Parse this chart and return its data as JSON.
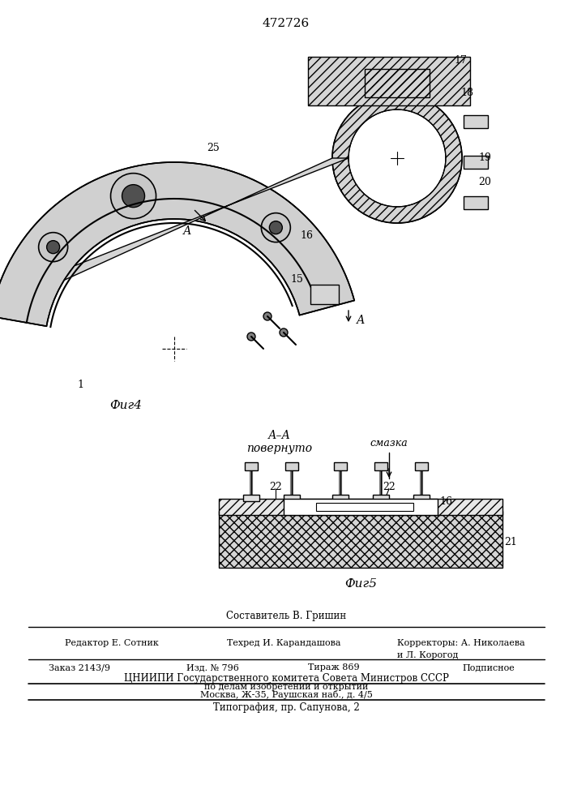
{
  "patent_number": "472726",
  "fig4_label": "Фиг4",
  "fig5_label": "Фиг5",
  "section_label": "А–А\nповернуто",
  "smazka_label": "смазка",
  "composer": "Составитель В. Гришин",
  "editor": "Редактор Е. Сотник",
  "techred": "Техред И. Карандашова",
  "correctors": "Корректоры: А. Николаева",
  "correctors2": "и Л. Корогод",
  "order": "Заказ 2143/9",
  "izd": "Изд. № 796",
  "tirazh": "Тираж 869",
  "podpisnoe": "Подписное",
  "cniipи": "ЦНИИПИ Государственного комитета Совета Министров СССР",
  "po_delam": "по делам изобретений и открытий",
  "moscow": "Москва, Ж-35, Раушская наб., д. 4/5",
  "tipografia": "Типография, пр. Сапунова, 2",
  "bg_color": "#ffffff",
  "line_color": "#000000"
}
